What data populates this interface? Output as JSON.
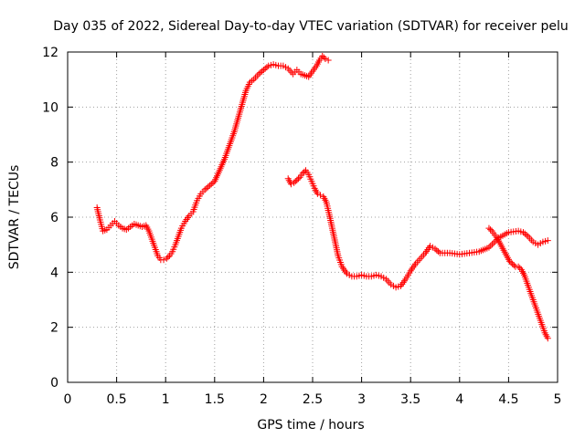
{
  "chart_data": {
    "type": "scatter",
    "title": "Day 035 of 2022, Sidereal Day-to-day VTEC variation (SDTVAR) for receiver pelu",
    "xlabel": "GPS time / hours",
    "ylabel": "SDTVAR / TECUs",
    "xlim": [
      0,
      5
    ],
    "ylim": [
      0,
      12
    ],
    "xticks": [
      0,
      0.5,
      1,
      1.5,
      2,
      2.5,
      3,
      3.5,
      4,
      4.5,
      5
    ],
    "xtick_labels": [
      "0",
      "0.5",
      "1",
      "1.5",
      "2",
      "2.5",
      "3",
      "3.5",
      "4",
      "4.5",
      "5"
    ],
    "yticks": [
      0,
      2,
      4,
      6,
      8,
      10,
      12
    ],
    "ytick_labels": [
      "0",
      "2",
      "4",
      "6",
      "8",
      "10",
      "12"
    ],
    "grid": true,
    "marker": "+",
    "color": "#ff0000",
    "series": [
      {
        "name": "segment-1",
        "x": [
          0.3,
          0.33,
          0.36,
          0.4,
          0.44,
          0.48,
          0.52,
          0.56,
          0.6,
          0.64,
          0.68,
          0.72,
          0.76,
          0.8,
          0.83,
          0.86,
          0.89,
          0.92,
          0.95,
          0.98,
          1.01,
          1.04,
          1.07,
          1.1,
          1.13,
          1.16,
          1.2,
          1.24,
          1.28,
          1.32,
          1.36,
          1.4,
          1.45,
          1.5,
          1.55,
          1.6,
          1.65,
          1.7,
          1.74,
          1.78,
          1.82,
          1.86,
          1.9,
          1.95,
          2.0,
          2.05,
          2.1,
          2.15,
          2.2,
          2.25,
          2.3,
          2.34,
          2.38,
          2.42,
          2.46,
          2.5,
          2.54,
          2.57,
          2.6,
          2.63,
          2.66
        ],
        "y": [
          6.35,
          5.9,
          5.5,
          5.55,
          5.7,
          5.85,
          5.7,
          5.6,
          5.55,
          5.65,
          5.75,
          5.7,
          5.65,
          5.7,
          5.5,
          5.2,
          4.9,
          4.6,
          4.45,
          4.45,
          4.5,
          4.6,
          4.75,
          5.0,
          5.3,
          5.6,
          5.85,
          6.05,
          6.2,
          6.6,
          6.85,
          7.0,
          7.15,
          7.3,
          7.7,
          8.1,
          8.6,
          9.1,
          9.6,
          10.1,
          10.6,
          10.9,
          11.0,
          11.2,
          11.35,
          11.5,
          11.55,
          11.5,
          11.5,
          11.4,
          11.2,
          11.35,
          11.2,
          11.15,
          11.1,
          11.3,
          11.5,
          11.7,
          11.85,
          11.75,
          11.7
        ]
      },
      {
        "name": "segment-2",
        "x": [
          2.25,
          2.28,
          2.31,
          2.34,
          2.37,
          2.4,
          2.43,
          2.46,
          2.49,
          2.52,
          2.55,
          2.58,
          2.61,
          2.64,
          2.67,
          2.7,
          2.73,
          2.76,
          2.8,
          2.85,
          2.9,
          2.95,
          3.0,
          3.05,
          3.1,
          3.15,
          3.2,
          3.25,
          3.3,
          3.35,
          3.4,
          3.45,
          3.5,
          3.55,
          3.6,
          3.65,
          3.7,
          3.75,
          3.8,
          3.9,
          4.0,
          4.1,
          4.2,
          4.3,
          4.4,
          4.5,
          4.6,
          4.65,
          4.7,
          4.75,
          4.8,
          4.85,
          4.9
        ],
        "y": [
          7.4,
          7.2,
          7.25,
          7.35,
          7.45,
          7.6,
          7.7,
          7.55,
          7.3,
          7.05,
          6.85,
          6.8,
          6.75,
          6.55,
          6.1,
          5.6,
          5.1,
          4.6,
          4.2,
          3.95,
          3.85,
          3.85,
          3.9,
          3.85,
          3.85,
          3.9,
          3.85,
          3.75,
          3.55,
          3.45,
          3.5,
          3.75,
          4.05,
          4.3,
          4.5,
          4.7,
          4.95,
          4.85,
          4.7,
          4.7,
          4.65,
          4.7,
          4.75,
          4.9,
          5.25,
          5.45,
          5.5,
          5.45,
          5.3,
          5.1,
          5.0,
          5.1,
          5.15
        ]
      },
      {
        "name": "segment-3",
        "x": [
          4.3,
          4.33,
          4.36,
          4.39,
          4.42,
          4.45,
          4.48,
          4.51,
          4.54,
          4.57,
          4.6,
          4.63,
          4.66,
          4.69,
          4.72,
          4.75,
          4.78,
          4.81,
          4.84,
          4.87,
          4.9
        ],
        "y": [
          5.6,
          5.5,
          5.35,
          5.2,
          5.0,
          4.8,
          4.6,
          4.4,
          4.3,
          4.2,
          4.2,
          4.1,
          3.9,
          3.6,
          3.3,
          3.0,
          2.7,
          2.4,
          2.1,
          1.8,
          1.6
        ]
      }
    ]
  }
}
